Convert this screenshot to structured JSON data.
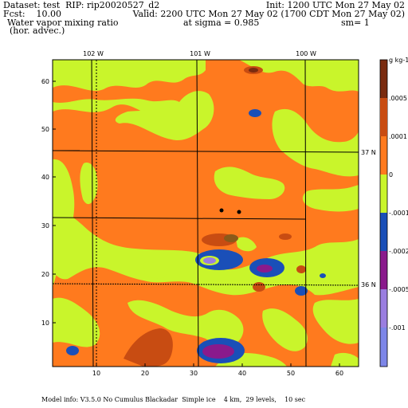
{
  "header": {
    "dataset_label": "Dataset: test  RIP: rip20020527_d2",
    "fcst_label": "Fcst:    10.00",
    "field_label": "Water vapor mixing ratio",
    "field_sub": "(hor. advec.)",
    "init_label": "Init: 1200 UTC Mon 27 May 02",
    "valid_label": "Valid: 2200 UTC Mon 27 May 02 (1700 CDT Mon 27 May 02)",
    "sigma_label": "at sigma = 0.985",
    "sm_label": "sm= 1"
  },
  "map": {
    "top_lon_labels": [
      "102 W",
      "101 W",
      "100 W"
    ],
    "right_lat_labels": [
      "37 N",
      "36 N"
    ],
    "left_ticks": [
      "60",
      "50",
      "40",
      "30",
      "20",
      "10"
    ],
    "bottom_ticks": [
      "10",
      "20",
      "30",
      "40",
      "50",
      "60"
    ],
    "grid_range": [
      1,
      64
    ],
    "colors": {
      "pos_0005": "#7a2b0f",
      "pos_0001": "#c84c12",
      "pos_small": "#ff7a1e",
      "near_zero": "#c9f52b",
      "neg_small": "#3aa82a",
      "neg_0002": "#1a4fb8",
      "neg_0005": "#8a1a8c",
      "neg_001": "#9a7ee0",
      "neg_large": "#7d86e8"
    }
  },
  "colorbar": {
    "unit_label": "g kg-1",
    "labels": [
      ".0005",
      ".0001",
      "0",
      "-.0001",
      "-.0002",
      "-.0005",
      "-.001"
    ]
  },
  "footer": {
    "model_info": "Model info: V3.5.0 No Cumulus Blackadar  Simple ice    4 km,  29 levels,    10 sec"
  }
}
